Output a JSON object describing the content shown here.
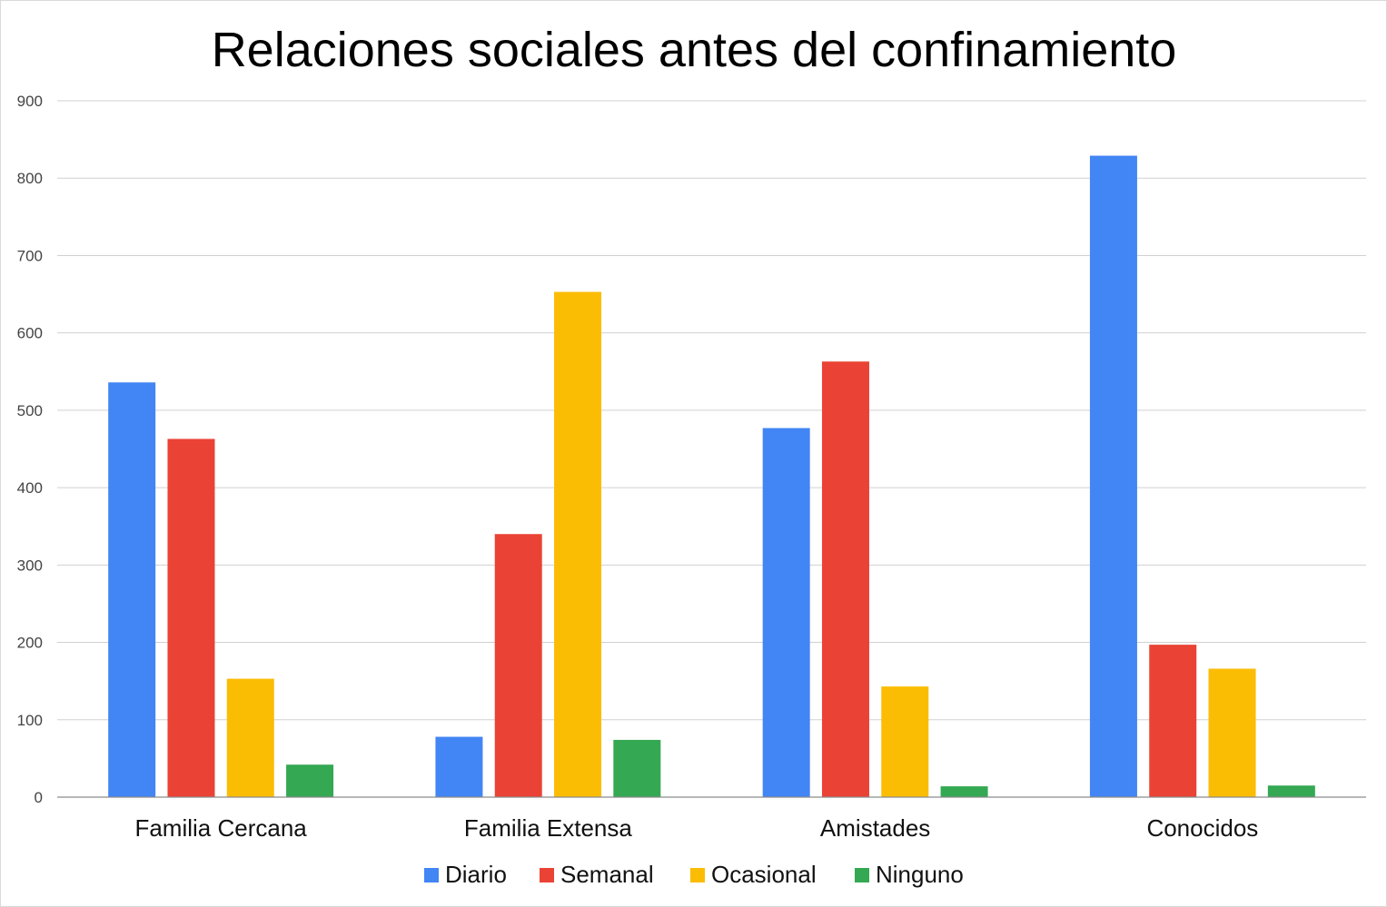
{
  "chart_data": {
    "type": "bar",
    "title": "Relaciones sociales antes del confinamiento",
    "xlabel": "",
    "ylabel": "",
    "ylim": [
      0,
      900
    ],
    "yticks": [
      0,
      100,
      200,
      300,
      400,
      500,
      600,
      700,
      800,
      900
    ],
    "grid": true,
    "legend_position": "bottom",
    "categories": [
      "Familia Cercana",
      "Familia Extensa",
      "Amistades",
      "Conocidos"
    ],
    "series": [
      {
        "name": "Diario",
        "color": "#4285F4",
        "values": [
          536,
          78,
          477,
          829
        ]
      },
      {
        "name": "Semanal",
        "color": "#EA4335",
        "values": [
          463,
          340,
          563,
          197
        ]
      },
      {
        "name": "Ocasional",
        "color": "#FBBC04",
        "values": [
          153,
          653,
          143,
          166
        ]
      },
      {
        "name": "Ninguno",
        "color": "#34A853",
        "values": [
          42,
          74,
          14,
          15
        ]
      }
    ]
  }
}
